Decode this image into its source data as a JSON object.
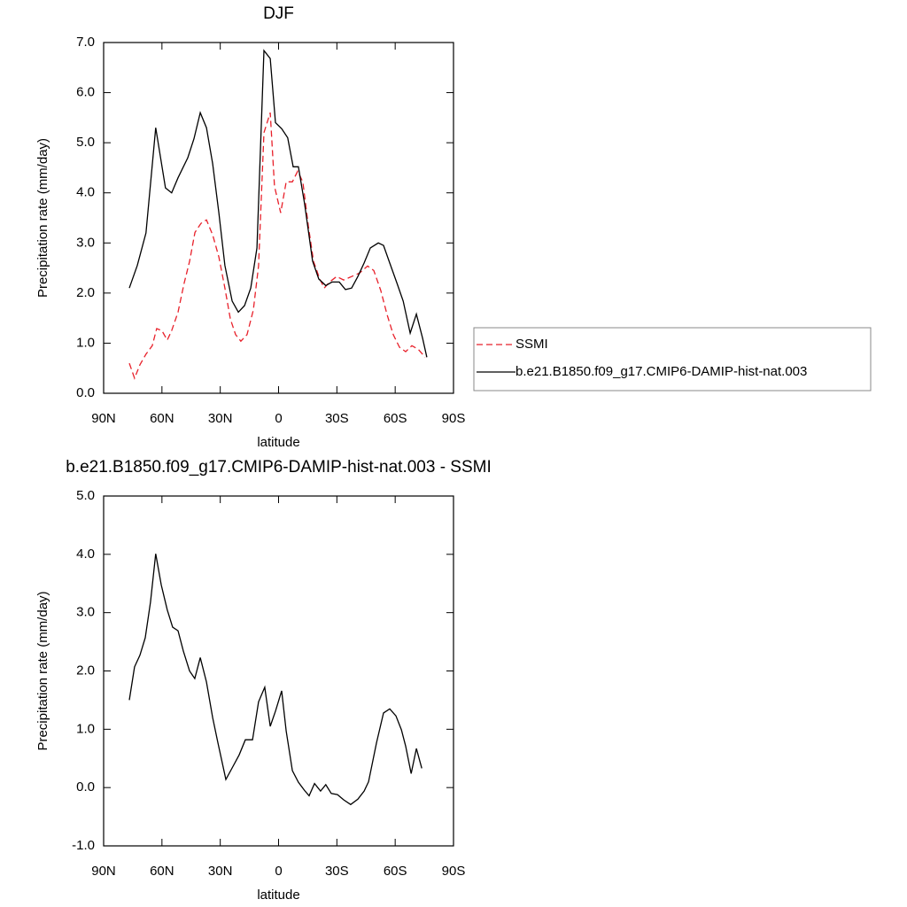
{
  "chart_data": [
    {
      "type": "line",
      "title": "DJF",
      "xlabel": "latitude",
      "ylabel": "Precipitation rate (mm/day)",
      "xlim": [
        90,
        -90
      ],
      "xticks": [
        {
          "value": 90,
          "label": "90N"
        },
        {
          "value": 60,
          "label": "60N"
        },
        {
          "value": 30,
          "label": "30N"
        },
        0,
        {
          "value": -30,
          "label": "30S"
        },
        {
          "value": -60,
          "label": "60S"
        },
        {
          "value": -90,
          "label": "90S"
        }
      ],
      "ylim": [
        0,
        7
      ],
      "yticks": [
        {
          "value": 0,
          "label": "0.0"
        },
        {
          "value": 1,
          "label": "1.0"
        },
        {
          "value": 2,
          "label": "2.0"
        },
        {
          "value": 3,
          "label": "3.0"
        },
        {
          "value": 4,
          "label": "4.0"
        },
        {
          "value": 5,
          "label": "5.0"
        },
        {
          "value": 6,
          "label": "6.0"
        },
        {
          "value": 7,
          "label": "7.0"
        }
      ],
      "legend": "right",
      "series": [
        {
          "name": "SSMI",
          "color": "#e8202a",
          "dash": true,
          "x": [
            76.8,
            74.1,
            71.3,
            68.2,
            65,
            62.7,
            60,
            57.3,
            55,
            51.7,
            48.6,
            45.8,
            43,
            39.9,
            37.1,
            33.9,
            30.7,
            27.6,
            24.8,
            22.1,
            19.4,
            16.2,
            13,
            10.3,
            7.5,
            4.3,
            2.1,
            -1.1,
            -3.9,
            -7.1,
            -9.8,
            -12.5,
            -15.3,
            -18,
            -21.2,
            -23.5,
            -26.2,
            -29.9,
            -33.5,
            -37.6,
            -41.7,
            -45.8,
            -49,
            -52.6,
            -55.8,
            -59,
            -62.2,
            -65.4,
            -68.6,
            -71.8,
            -75.4
          ],
          "values": [
            0.6,
            0.3,
            0.57,
            0.78,
            0.95,
            1.29,
            1.25,
            1.06,
            1.25,
            1.62,
            2.19,
            2.63,
            3.21,
            3.39,
            3.46,
            3.16,
            2.72,
            2.1,
            1.48,
            1.17,
            1.04,
            1.17,
            1.66,
            2.54,
            5.2,
            5.6,
            4.13,
            3.6,
            4.22,
            4.22,
            4.43,
            4.22,
            3.34,
            2.63,
            2.28,
            2.1,
            2.22,
            2.33,
            2.26,
            2.33,
            2.4,
            2.54,
            2.45,
            2.05,
            1.57,
            1.17,
            0.92,
            0.83,
            0.95,
            0.88,
            0.72
          ]
        },
        {
          "name": "b.e21.B1850.f09_g17.CMIP6-DAMIP-hist-nat.003",
          "color": "#000000",
          "dash": false,
          "x": [
            76.8,
            72.7,
            68.2,
            63.2,
            58.2,
            55,
            51.7,
            46.7,
            43.5,
            40.3,
            37.1,
            33.9,
            30.7,
            27.6,
            23.9,
            20.7,
            17.5,
            14.3,
            11.1,
            7.5,
            4.3,
            1.6,
            -1.6,
            -4.7,
            -7.5,
            -10.2,
            -13.4,
            -17.5,
            -20.7,
            -24.3,
            -27.5,
            -31.2,
            -34.4,
            -37.6,
            -40.8,
            -44,
            -47.2,
            -51.3,
            -54,
            -57.2,
            -60.9,
            -64.1,
            -67.7,
            -70.9,
            -74.1,
            -76.3
          ],
          "values": [
            2.1,
            2.55,
            3.2,
            5.3,
            4.1,
            4.0,
            4.3,
            4.7,
            5.08,
            5.6,
            5.3,
            4.58,
            3.6,
            2.55,
            1.84,
            1.62,
            1.75,
            2.1,
            2.9,
            6.84,
            6.68,
            5.4,
            5.28,
            5.1,
            4.52,
            4.52,
            3.78,
            2.64,
            2.28,
            2.15,
            2.22,
            2.22,
            2.07,
            2.1,
            2.33,
            2.6,
            2.9,
            3.0,
            2.95,
            2.6,
            2.2,
            1.84,
            1.2,
            1.58,
            1.1,
            0.72
          ]
        }
      ]
    },
    {
      "type": "line",
      "title": "b.e21.B1850.f09_g17.CMIP6-DAMIP-hist-nat.003 - SSMI",
      "xlabel": "latitude",
      "ylabel": "Precipitation rate (mm/day)",
      "xlim": [
        90,
        -90
      ],
      "xticks": [
        {
          "value": 90,
          "label": "90N"
        },
        {
          "value": 60,
          "label": "60N"
        },
        {
          "value": 30,
          "label": "30N"
        },
        0,
        {
          "value": -30,
          "label": "30S"
        },
        {
          "value": -60,
          "label": "60S"
        },
        {
          "value": -90,
          "label": "90S"
        }
      ],
      "ylim": [
        -1,
        5
      ],
      "yticks": [
        {
          "value": -1,
          "label": "-1.0"
        },
        {
          "value": 0,
          "label": "0.0"
        },
        {
          "value": 1,
          "label": "1.0"
        },
        {
          "value": 2,
          "label": "2.0"
        },
        {
          "value": 3,
          "label": "3.0"
        },
        {
          "value": 4,
          "label": "4.0"
        },
        {
          "value": 5,
          "label": "5.0"
        }
      ],
      "series": [
        {
          "color": "#000000",
          "dash": false,
          "x": [
            76.8,
            74.1,
            71.3,
            68.6,
            65.9,
            63.2,
            60.4,
            57.3,
            54.5,
            51.7,
            49,
            45.8,
            43.1,
            40.3,
            37.1,
            33.9,
            31.2,
            27.1,
            23.5,
            20.3,
            17.1,
            13.4,
            10.3,
            7.1,
            4.3,
            1.6,
            -1.6,
            -3.9,
            -7.1,
            -10.2,
            -13.4,
            -15.7,
            -18.5,
            -21.6,
            -24.3,
            -27.1,
            -30.3,
            -33.5,
            -37.1,
            -40.8,
            -44,
            -46.3,
            -50.4,
            -54,
            -57.2,
            -60.4,
            -63.2,
            -65.4,
            -68.2,
            -70.9,
            -73.7
          ],
          "values": [
            1.5,
            2.07,
            2.27,
            2.57,
            3.18,
            4.01,
            3.48,
            3.05,
            2.75,
            2.69,
            2.34,
            2.0,
            1.87,
            2.23,
            1.81,
            1.2,
            0.77,
            0.14,
            0.36,
            0.56,
            0.82,
            0.82,
            1.47,
            1.72,
            1.05,
            1.31,
            1.66,
            0.97,
            0.29,
            0.09,
            -0.05,
            -0.14,
            0.07,
            -0.06,
            0.05,
            -0.1,
            -0.12,
            -0.21,
            -0.29,
            -0.2,
            -0.06,
            0.1,
            0.77,
            1.28,
            1.35,
            1.23,
            0.99,
            0.71,
            0.24,
            0.67,
            0.33
          ]
        }
      ]
    }
  ]
}
